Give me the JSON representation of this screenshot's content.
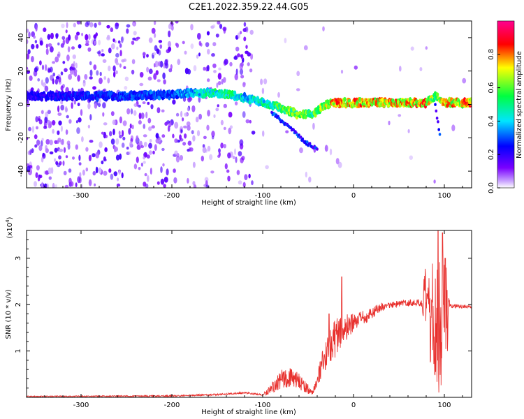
{
  "title": "C2E1.2022.359.22.44.G05",
  "chart_data": [
    {
      "type": "heatmap",
      "xlabel": "Height of straight line (km)",
      "ylabel": "Frequency (Hz)",
      "xlim": [
        -360,
        130
      ],
      "ylim": [
        -50,
        50
      ],
      "xticks": [
        -300,
        -200,
        -100,
        0,
        100
      ],
      "yticks": [
        -40,
        -20,
        0,
        20,
        40
      ],
      "colorbar": {
        "label": "Normalized spectral amplitude",
        "range": [
          0.0,
          1.0
        ],
        "ticks": [
          "0.0",
          "0.2",
          "0.4",
          "0.6",
          "0.8"
        ],
        "colors": [
          "#ffffff",
          "#7a00ff",
          "#0000ff",
          "#00e5ff",
          "#00ff40",
          "#ffff00",
          "#ff0000",
          "#ff0090"
        ]
      },
      "ridge": [
        {
          "x": -350,
          "y": 5,
          "amp": 0.22
        },
        {
          "x": -300,
          "y": 5,
          "amp": 0.25
        },
        {
          "x": -250,
          "y": 5,
          "amp": 0.28
        },
        {
          "x": -200,
          "y": 6,
          "amp": 0.3
        },
        {
          "x": -160,
          "y": 7,
          "amp": 0.45
        },
        {
          "x": -140,
          "y": 6,
          "amp": 0.5
        },
        {
          "x": -120,
          "y": 4,
          "amp": 0.4
        },
        {
          "x": -100,
          "y": 1,
          "amp": 0.45
        },
        {
          "x": -80,
          "y": -2,
          "amp": 0.55
        },
        {
          "x": -60,
          "y": -6,
          "amp": 0.6
        },
        {
          "x": -45,
          "y": -6,
          "amp": 0.55
        },
        {
          "x": -30,
          "y": 0,
          "amp": 0.65
        },
        {
          "x": -20,
          "y": 1,
          "amp": 0.8
        },
        {
          "x": 0,
          "y": 1,
          "amp": 0.75
        },
        {
          "x": 40,
          "y": 1,
          "amp": 0.7
        },
        {
          "x": 80,
          "y": 1,
          "amp": 0.75
        },
        {
          "x": 90,
          "y": 5,
          "amp": 0.55
        },
        {
          "x": 100,
          "y": 1,
          "amp": 0.7
        },
        {
          "x": 130,
          "y": 1,
          "amp": 0.75
        }
      ],
      "branches": [
        {
          "points": [
            {
              "x": -90,
              "y": -5
            },
            {
              "x": -70,
              "y": -14
            },
            {
              "x": -55,
              "y": -22
            },
            {
              "x": -40,
              "y": -27
            }
          ]
        },
        {
          "points": [
            {
              "x": 90,
              "y": 0
            },
            {
              "x": 92,
              "y": -8
            },
            {
              "x": 95,
              "y": -18
            }
          ]
        }
      ]
    },
    {
      "type": "line",
      "xlabel": "Height of straight line (km)",
      "ylabel": "SNR (10 * v/v)",
      "yscale_label": "(x10",
      "yscale_exponent": "4",
      "yscale_close": ")",
      "xlim": [
        -360,
        130
      ],
      "ylim": [
        0,
        3.6
      ],
      "xticks": [
        -300,
        -200,
        -100,
        0,
        100
      ],
      "yticks": [
        1,
        2,
        3
      ],
      "color": "#e8312e",
      "envelope": [
        {
          "x": -360,
          "y": 0.02
        },
        {
          "x": -200,
          "y": 0.03
        },
        {
          "x": -150,
          "y": 0.06
        },
        {
          "x": -120,
          "y": 0.1
        },
        {
          "x": -100,
          "y": 0.05
        },
        {
          "x": -90,
          "y": 0.2
        },
        {
          "x": -75,
          "y": 0.45
        },
        {
          "x": -60,
          "y": 0.35
        },
        {
          "x": -45,
          "y": 0.1
        },
        {
          "x": -35,
          "y": 0.6
        },
        {
          "x": -25,
          "y": 1.2
        },
        {
          "x": -15,
          "y": 1.4
        },
        {
          "x": 0,
          "y": 1.6
        },
        {
          "x": 15,
          "y": 1.75
        },
        {
          "x": 30,
          "y": 1.95
        },
        {
          "x": 50,
          "y": 2.02
        },
        {
          "x": 70,
          "y": 2.05
        },
        {
          "x": 80,
          "y": 2.0
        },
        {
          "x": 85,
          "y": 1.7
        },
        {
          "x": 92,
          "y": 1.5
        },
        {
          "x": 100,
          "y": 1.8
        },
        {
          "x": 105,
          "y": 1.98
        },
        {
          "x": 130,
          "y": 1.95
        }
      ],
      "noise": [
        {
          "x": -360,
          "y": 0.01
        },
        {
          "x": -100,
          "y": 0.02
        },
        {
          "x": -90,
          "y": 0.12
        },
        {
          "x": -75,
          "y": 0.25
        },
        {
          "x": -55,
          "y": 0.15
        },
        {
          "x": -45,
          "y": 0.05
        },
        {
          "x": -35,
          "y": 0.35
        },
        {
          "x": -20,
          "y": 0.45
        },
        {
          "x": 0,
          "y": 0.2
        },
        {
          "x": 40,
          "y": 0.06
        },
        {
          "x": 75,
          "y": 0.08
        },
        {
          "x": 80,
          "y": 1.0
        },
        {
          "x": 95,
          "y": 1.6
        },
        {
          "x": 103,
          "y": 1.2
        },
        {
          "x": 106,
          "y": 0.05
        },
        {
          "x": 130,
          "y": 0.03
        }
      ],
      "spikes": [
        {
          "x": -27,
          "y": 1.8
        },
        {
          "x": -13,
          "y": 2.6
        },
        {
          "x": 93,
          "y": 3.6
        },
        {
          "x": 98,
          "y": 3.55
        },
        {
          "x": 101,
          "y": 3.0
        }
      ]
    }
  ]
}
